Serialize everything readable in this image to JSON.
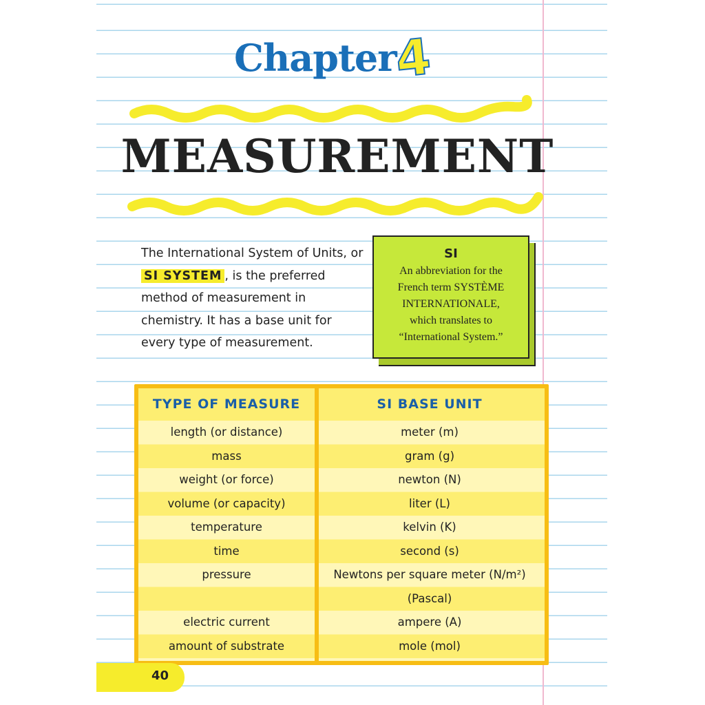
{
  "header": {
    "chapter_label": "Chapter",
    "chapter_number": "4",
    "title": "MEASUREMENT"
  },
  "intro": {
    "before": "The International System of Units, or ",
    "highlight": "SI SYSTEM",
    "after": ", is the preferred method of measurement in chemistry. It has a base unit for every type of measurement."
  },
  "sidebox": {
    "heading": "SI",
    "lines": [
      "An abbreviation for the",
      "French term SYSTÈME",
      "INTERNATIONALE,",
      "which translates to",
      "“International System.”"
    ]
  },
  "table": {
    "headers": [
      "TYPE OF MEASURE",
      "SI BASE UNIT"
    ],
    "rows": [
      [
        "length (or distance)",
        "meter (m)"
      ],
      [
        "mass",
        "gram (g)"
      ],
      [
        "weight (or force)",
        "newton (N)"
      ],
      [
        "volume (or capacity)",
        "liter (L)"
      ],
      [
        "temperature",
        "kelvin (K)"
      ],
      [
        "time",
        "second (s)"
      ],
      [
        "pressure",
        "Newtons per square meter (N/m²) (Pascal)"
      ],
      [
        "electric current",
        "ampere (A)"
      ],
      [
        "amount of substrate",
        "mole (mol)"
      ]
    ]
  },
  "page_number": "40",
  "colors": {
    "highlight": "#f6ec2c",
    "chapter_blue": "#1a6fb8",
    "box_green": "#c6e83a",
    "table_border": "#f7bd14"
  }
}
